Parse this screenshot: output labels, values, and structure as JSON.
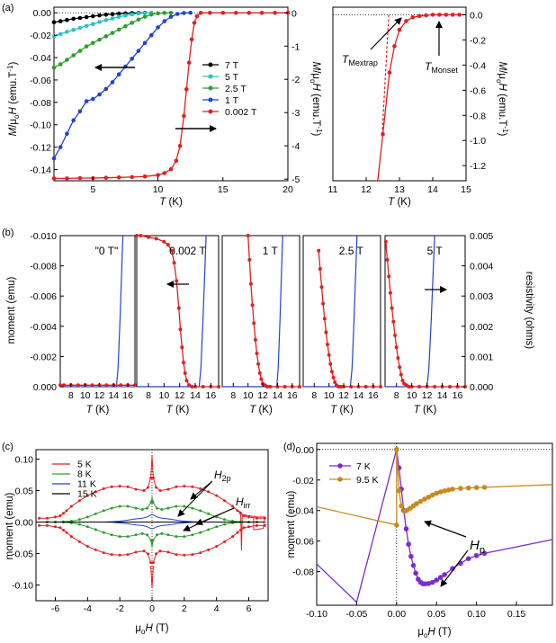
{
  "panels": {
    "a": "(a)",
    "b": "(b)",
    "c": "(c)",
    "d": "(d)"
  },
  "chart_data": [
    {
      "id": "a1",
      "type": "line",
      "xlabel": "T (K)",
      "ylabel_left": "M/μ0H (emu.T⁻¹)",
      "ylabel_right": "M/μ0H (emu.T⁻¹)",
      "xlim": [
        2,
        20
      ],
      "ylim": [
        -0.15,
        0.005
      ],
      "y2lim": [
        -5.05,
        0.17
      ],
      "xticks": [
        5,
        10,
        15,
        20
      ],
      "yticks": [
        0.0,
        -0.02,
        -0.04,
        -0.06,
        -0.08,
        -0.1,
        -0.12,
        -0.14
      ],
      "y2ticks": [
        0,
        -1,
        -2,
        -3,
        -4,
        -5
      ],
      "ytick_labels": [
        "0.00",
        "-0.02",
        "-0.04",
        "-0.06",
        "-0.08",
        "-0.10",
        "-0.12",
        "-0.14"
      ],
      "y2tick_labels": [
        "0",
        "-1",
        "-2",
        "-3",
        "-4",
        "-5"
      ],
      "legend": [
        "7 T",
        "5 T",
        "2.5 T",
        "1 T",
        "0.002 T"
      ],
      "series": [
        {
          "name": "7 T",
          "color": "#000000",
          "axis": "left",
          "x": [
            2,
            2.5,
            3,
            3.5,
            4,
            4.5,
            5,
            5.5,
            6,
            6.5,
            7,
            7.5,
            8,
            8.5,
            9
          ],
          "y": [
            -0.0085,
            -0.0075,
            -0.0064,
            -0.0054,
            -0.0046,
            -0.0038,
            -0.003,
            -0.0023,
            -0.0017,
            -0.0012,
            -0.0008,
            -0.0005,
            -0.0002,
            -0.0001,
            0
          ]
        },
        {
          "name": "5 T",
          "color": "#27c4c4",
          "axis": "left",
          "x": [
            2,
            2.5,
            3,
            3.5,
            4,
            4.5,
            5,
            5.5,
            6,
            6.5,
            7,
            7.5,
            8,
            8.5,
            9,
            9.5
          ],
          "y": [
            -0.021,
            -0.019,
            -0.017,
            -0.0152,
            -0.0135,
            -0.0118,
            -0.01,
            -0.0082,
            -0.0066,
            -0.005,
            -0.0036,
            -0.0024,
            -0.0014,
            -0.0006,
            -0.0002,
            0
          ]
        },
        {
          "name": "2.5 T",
          "color": "#2e9e2e",
          "axis": "left",
          "x": [
            2,
            2.5,
            3,
            3.5,
            4,
            4.5,
            5,
            5.5,
            6,
            6.5,
            7,
            7.5,
            8,
            8.5,
            9,
            9.5,
            10,
            10.5,
            11
          ],
          "y": [
            -0.049,
            -0.046,
            -0.042,
            -0.038,
            -0.034,
            -0.03,
            -0.027,
            -0.024,
            -0.021,
            -0.018,
            -0.015,
            -0.012,
            -0.009,
            -0.006,
            -0.0035,
            -0.0015,
            -0.0005,
            -0.0001,
            0
          ]
        },
        {
          "name": "1 T",
          "color": "#2244cc",
          "axis": "left",
          "x": [
            2,
            2.5,
            3,
            3.5,
            4,
            4.5,
            5,
            5.5,
            6,
            6.5,
            7,
            7.5,
            8,
            8.5,
            9,
            9.5,
            10,
            10.5,
            11,
            11.5,
            12,
            12.5
          ],
          "y": [
            -0.13,
            -0.12,
            -0.108,
            -0.096,
            -0.088,
            -0.079,
            -0.077,
            -0.073,
            -0.068,
            -0.062,
            -0.055,
            -0.048,
            -0.041,
            -0.034,
            -0.027,
            -0.02,
            -0.013,
            -0.0075,
            -0.0035,
            -0.001,
            -0.0002,
            0
          ]
        },
        {
          "name": "0.002 T",
          "color": "#e02020",
          "axis": "right",
          "x": [
            2,
            3,
            4,
            5,
            6,
            7,
            8,
            9,
            10,
            10.5,
            11,
            11.4,
            11.7,
            12,
            12.2,
            12.4,
            12.6,
            12.8,
            13.0,
            13.3,
            14,
            15,
            16,
            17,
            18,
            19,
            20
          ],
          "y": [
            -4.98,
            -4.98,
            -4.97,
            -4.97,
            -4.96,
            -4.95,
            -4.94,
            -4.92,
            -4.88,
            -4.82,
            -4.7,
            -4.45,
            -4.0,
            -3.1,
            -2.3,
            -1.5,
            -0.8,
            -0.3,
            -0.1,
            0,
            0,
            0,
            0,
            0,
            0,
            0,
            0
          ]
        }
      ]
    },
    {
      "id": "a2",
      "type": "line",
      "xlabel": "T (K)",
      "ylabel": "M/μ0H (emu.T⁻¹)",
      "xlim": [
        11,
        15
      ],
      "ylim": [
        -1.32,
        0.06
      ],
      "xticks": [
        11,
        12,
        13,
        14,
        15
      ],
      "yticks": [
        0.0,
        -0.2,
        -0.4,
        -0.6,
        -0.8,
        -1.0,
        -1.2
      ],
      "ytick_labels": [
        "0.0",
        "-0.2",
        "-0.4",
        "-0.6",
        "-0.8",
        "-1.0",
        "-1.2"
      ],
      "annotations": [
        "TMextrap",
        "TMonset"
      ],
      "series": [
        {
          "name": "",
          "color": "#e02020",
          "x": [
            12.35,
            12.5,
            12.7,
            12.85,
            13.0,
            13.2,
            13.4,
            13.6,
            13.8,
            14.0,
            14.2,
            14.4,
            14.6,
            14.8,
            15.0
          ],
          "y": [
            -1.32,
            -0.95,
            -0.46,
            -0.25,
            -0.12,
            -0.05,
            -0.02,
            -0.01,
            -0.005,
            0,
            0,
            0,
            0,
            0,
            0
          ]
        }
      ]
    },
    {
      "id": "b",
      "type": "line",
      "xlabel": "T (K)",
      "ylabel_left": "moment (emu)",
      "ylabel_right": "resistivity (ohms)",
      "ylim": [
        0,
        -0.01
      ],
      "y2lim": [
        0,
        0.005
      ],
      "xticks": [
        8,
        10,
        12,
        14,
        16
      ],
      "xlim": [
        6.5,
        17
      ],
      "yticks": [
        0,
        -0.002,
        -0.004,
        -0.006,
        -0.008,
        -0.01
      ],
      "ytick_labels": [
        "0.000",
        "-0.002",
        "-0.004",
        "-0.006",
        "-0.008",
        "-0.010"
      ],
      "y2ticks": [
        0,
        0.001,
        0.002,
        0.003,
        0.004,
        0.005
      ],
      "y2tick_labels": [
        "0.000",
        "0.001",
        "0.002",
        "0.003",
        "0.004",
        "0.005"
      ],
      "subpanels": [
        {
          "label": "\"0 T\"",
          "moment_x": [
            6.5,
            7,
            8,
            9,
            10,
            11,
            12,
            13,
            14,
            15,
            16,
            17
          ],
          "moment_y": [
            -0.0001,
            -0.0001,
            -0.0001,
            -0.0001,
            -0.0001,
            -0.0001,
            -0.0001,
            -0.0001,
            -0.0001,
            -0.0001,
            -0.0001,
            -0.0001
          ],
          "res_onset": 14.4,
          "res_top": 15.3
        },
        {
          "label": "0.002 T",
          "moment_x": [
            6.5,
            7,
            8,
            9,
            10,
            10.5,
            11,
            11.3,
            11.6,
            11.9,
            12.1,
            12.3,
            12.5,
            12.7,
            12.9,
            13.2,
            13.6,
            14,
            15,
            16,
            17
          ],
          "moment_y": [
            -0.01,
            -0.01,
            -0.0099,
            -0.0098,
            -0.0096,
            -0.0094,
            -0.009,
            -0.0082,
            -0.007,
            -0.0052,
            -0.0038,
            -0.0026,
            -0.0016,
            -0.0009,
            -0.0004,
            -0.0001,
            0,
            0,
            0,
            0,
            0
          ],
          "res_onset": 14.5,
          "res_top": 15.4
        },
        {
          "label": "1 T",
          "moment_x": [
            10.0,
            10.2,
            10.4,
            10.6,
            10.8,
            11.0,
            11.2,
            11.4,
            11.6,
            11.8,
            12.0,
            12.3,
            12.6,
            13,
            14,
            15,
            16,
            17
          ],
          "moment_y": [
            -0.01,
            -0.0084,
            -0.0068,
            -0.0054,
            -0.0042,
            -0.0031,
            -0.0022,
            -0.0015,
            -0.0009,
            -0.0005,
            -0.0002,
            -0.0001,
            0,
            0,
            0,
            0,
            0,
            0
          ],
          "res_onset": 13.9,
          "res_top": 14.7
        },
        {
          "label": "2.5 T",
          "moment_x": [
            8.6,
            8.8,
            9.0,
            9.2,
            9.4,
            9.6,
            9.8,
            10.0,
            10.2,
            10.4,
            10.6,
            10.8,
            11.0,
            11.3,
            11.6,
            12,
            13,
            14,
            15,
            16,
            17
          ],
          "moment_y": [
            -0.009,
            -0.0078,
            -0.0066,
            -0.0055,
            -0.0045,
            -0.0036,
            -0.0028,
            -0.0021,
            -0.0015,
            -0.001,
            -0.0006,
            -0.0003,
            -0.0001,
            0,
            0,
            0,
            0,
            0,
            0,
            0,
            0
          ],
          "res_onset": 12.9,
          "res_top": 13.8
        },
        {
          "label": "5 T",
          "moment_x": [
            6.6,
            6.8,
            7.0,
            7.2,
            7.4,
            7.6,
            7.8,
            8.0,
            8.2,
            8.4,
            8.6,
            8.8,
            9.0,
            9.3,
            9.6,
            10,
            11,
            12,
            13,
            14,
            15,
            16,
            17
          ],
          "moment_y": [
            -0.0096,
            -0.0084,
            -0.0073,
            -0.0062,
            -0.0052,
            -0.0043,
            -0.0034,
            -0.0026,
            -0.0019,
            -0.0013,
            -0.0008,
            -0.0004,
            -0.0002,
            -0.0001,
            0,
            0,
            0,
            0,
            0,
            0,
            0,
            0,
            0
          ],
          "res_onset": 12.0,
          "res_top": 13.0
        }
      ]
    },
    {
      "id": "c",
      "type": "line",
      "xlabel": "μ0H (T)",
      "ylabel": "moment (emu)",
      "xlim": [
        -7.2,
        7.2
      ],
      "ylim": [
        -0.125,
        0.115
      ],
      "xticks": [
        -6,
        -4,
        -2,
        0,
        2,
        4,
        6
      ],
      "yticks": [
        0.1,
        0.05,
        0.0,
        -0.05,
        -0.1
      ],
      "ytick_labels": [
        "0.10",
        "0.05",
        "0.00",
        "-0.05",
        "-0.10"
      ],
      "legend": [
        "5 K",
        "8 K",
        "11 K",
        "15 K"
      ],
      "annotations": [
        "H2p",
        "Hirr"
      ],
      "series": [
        {
          "name": "5 K",
          "color": "#e02020",
          "x": [
            0.08,
            0.25,
            0.5,
            1,
            1.5,
            2,
            2.5,
            3,
            3.5,
            4,
            4.5,
            5,
            5.3,
            5.5,
            5.7,
            6,
            6.5,
            7
          ],
          "y_upper": [
            0.07,
            0.055,
            0.05,
            0.052,
            0.056,
            0.057,
            0.056,
            0.053,
            0.048,
            0.042,
            0.034,
            0.025,
            0.018,
            0.014,
            0.01,
            0.008,
            0.006,
            0.006
          ]
        },
        {
          "name": "8 K",
          "color": "#2e9e2e",
          "x": [
            0.05,
            0.3,
            0.6,
            1,
            1.5,
            2,
            2.5,
            3,
            3.5,
            4,
            4.5,
            5,
            5.5,
            6,
            6.5
          ],
          "y_upper": [
            0.032,
            0.022,
            0.02,
            0.022,
            0.025,
            0.025,
            0.022,
            0.018,
            0.013,
            0.008,
            0.004,
            0.0015,
            0.0005,
            0,
            0
          ]
        },
        {
          "name": "11 K",
          "color": "#2244cc",
          "x": [
            0.02,
            0.3,
            0.6,
            1,
            1.5,
            2,
            2.5,
            3
          ],
          "y_upper": [
            0.012,
            0.008,
            0.006,
            0.005,
            0.003,
            0.0015,
            0.0005,
            0
          ]
        },
        {
          "name": "15 K",
          "color": "#000000",
          "x": [
            -7,
            7
          ],
          "y_upper": [
            0,
            0
          ]
        }
      ]
    },
    {
      "id": "d",
      "type": "line",
      "xlabel": "μ0H (T)",
      "ylabel": "moment (emu)",
      "xlim": [
        -0.1,
        0.195
      ],
      "ylim": [
        -0.102,
        0.004
      ],
      "xticks": [
        -0.1,
        -0.05,
        0.0,
        0.05,
        0.1,
        0.15
      ],
      "xtick_labels": [
        "-0.10",
        "-0.05",
        "0.00",
        "0.05",
        "0.10",
        "0.15"
      ],
      "yticks": [
        0.0,
        -0.02,
        -0.04,
        -0.06,
        -0.08
      ],
      "ytick_labels": [
        "0.00",
        "-0.02",
        "-0.04",
        "-0.06",
        "-0.08"
      ],
      "legend": [
        "7 K",
        "9.5 K"
      ],
      "annotations": [
        "Hp"
      ],
      "series": [
        {
          "name": "7 K",
          "color": "#7a2bd6",
          "x": [
            -0.1,
            -0.05,
            0.0,
            0.003,
            0.006,
            0.009,
            0.012,
            0.015,
            0.018,
            0.021,
            0.024,
            0.027,
            0.03,
            0.033,
            0.036,
            0.04,
            0.045,
            0.05,
            0.055,
            0.06,
            0.07,
            0.08,
            0.09,
            0.1,
            0.11,
            0.195
          ],
          "y": [
            -0.075,
            -0.1,
            0.0,
            -0.012,
            -0.026,
            -0.04,
            -0.052,
            -0.062,
            -0.07,
            -0.076,
            -0.081,
            -0.085,
            -0.087,
            -0.088,
            -0.088,
            -0.0878,
            -0.087,
            -0.0855,
            -0.0838,
            -0.082,
            -0.078,
            -0.0745,
            -0.0715,
            -0.0695,
            -0.068,
            -0.059
          ],
          "markers_from": 2,
          "markers_to": 24
        },
        {
          "name": "9.5 K",
          "color": "#c88a1e",
          "x": [
            -0.1,
            0.0,
            0.0,
            0.003,
            0.006,
            0.01,
            0.013,
            0.017,
            0.021,
            0.025,
            0.03,
            0.035,
            0.04,
            0.045,
            0.05,
            0.055,
            0.06,
            0.065,
            0.07,
            0.08,
            0.09,
            0.1,
            0.11,
            0.195
          ],
          "y": [
            -0.0375,
            -0.0495,
            0.0,
            -0.027,
            -0.037,
            -0.0405,
            -0.0398,
            -0.0385,
            -0.037,
            -0.0355,
            -0.034,
            -0.0325,
            -0.0312,
            -0.0298,
            -0.0287,
            -0.0278,
            -0.0271,
            -0.0265,
            -0.026,
            -0.0255,
            -0.0252,
            -0.025,
            -0.0248,
            -0.023
          ],
          "markers_from": 1,
          "markers_to": 22
        }
      ]
    }
  ]
}
